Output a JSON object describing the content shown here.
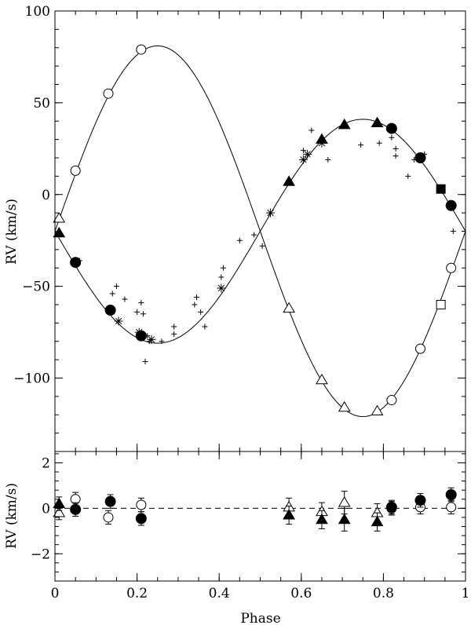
{
  "chart_data": [
    {
      "type": "scatter",
      "panel": "top",
      "ylabel": "RV (km/s)",
      "xlim": [
        0,
        1
      ],
      "ylim": [
        -140,
        100
      ],
      "x_ticks": [
        0,
        0.2,
        0.4,
        0.6,
        0.8,
        1
      ],
      "y_ticks": [
        -100,
        -50,
        0,
        50,
        100
      ],
      "y_tick_labels": [
        "−100",
        "−50",
        "0",
        "50",
        "100"
      ],
      "curves": [
        {
          "gamma": -20,
          "K": 101,
          "phase_max": 0.25
        },
        {
          "gamma": -20,
          "K": 61,
          "phase_max": 0.75
        }
      ],
      "series": [
        {
          "marker": "open-circle",
          "points": [
            [
              0.05,
              13
            ],
            [
              0.13,
              55
            ],
            [
              0.21,
              79
            ],
            [
              0.82,
              -112
            ],
            [
              0.89,
              -84
            ],
            [
              0.965,
              -40
            ]
          ]
        },
        {
          "marker": "open-triangle",
          "points": [
            [
              0.01,
              -13
            ],
            [
              0.57,
              -62
            ],
            [
              0.65,
              -101
            ],
            [
              0.705,
              -116
            ],
            [
              0.785,
              -118
            ]
          ]
        },
        {
          "marker": "open-square",
          "points": [
            [
              0.94,
              -60
            ]
          ]
        },
        {
          "marker": "filled-circle",
          "points": [
            [
              0.05,
              -37
            ],
            [
              0.135,
              -63
            ],
            [
              0.21,
              -77
            ],
            [
              0.82,
              36
            ],
            [
              0.89,
              20
            ],
            [
              0.965,
              -6
            ]
          ]
        },
        {
          "marker": "filled-triangle",
          "points": [
            [
              0.01,
              -21
            ],
            [
              0.57,
              7
            ],
            [
              0.65,
              30
            ],
            [
              0.705,
              38
            ],
            [
              0.785,
              39
            ]
          ]
        },
        {
          "marker": "filled-square",
          "points": [
            [
              0.94,
              3
            ]
          ]
        },
        {
          "marker": "asterisk",
          "points": [
            [
              0.155,
              -69
            ],
            [
              0.205,
              -75
            ],
            [
              0.235,
              -79
            ],
            [
              0.405,
              -51
            ],
            [
              0.525,
              -10
            ],
            [
              0.605,
              19
            ],
            [
              0.615,
              22
            ],
            [
              0.65,
              28
            ]
          ]
        },
        {
          "marker": "plus",
          "points": [
            [
              0.06,
              -36
            ],
            [
              0.14,
              -54
            ],
            [
              0.15,
              -50
            ],
            [
              0.17,
              -57
            ],
            [
              0.2,
              -64
            ],
            [
              0.21,
              -59
            ],
            [
              0.215,
              -65
            ],
            [
              0.225,
              -77
            ],
            [
              0.23,
              -80
            ],
            [
              0.26,
              -80
            ],
            [
              0.22,
              -91
            ],
            [
              0.29,
              -72
            ],
            [
              0.29,
              -76
            ],
            [
              0.34,
              -60
            ],
            [
              0.345,
              -56
            ],
            [
              0.355,
              -64
            ],
            [
              0.365,
              -72
            ],
            [
              0.405,
              -45
            ],
            [
              0.41,
              -40
            ],
            [
              0.45,
              -25
            ],
            [
              0.485,
              -22
            ],
            [
              0.505,
              -28
            ],
            [
              0.565,
              6
            ],
            [
              0.605,
              24
            ],
            [
              0.625,
              35
            ],
            [
              0.665,
              19
            ],
            [
              0.745,
              27
            ],
            [
              0.79,
              28
            ],
            [
              0.82,
              31
            ],
            [
              0.83,
              25
            ],
            [
              0.83,
              21
            ],
            [
              0.86,
              10
            ],
            [
              0.875,
              19
            ],
            [
              0.9,
              22
            ],
            [
              0.97,
              -20
            ]
          ]
        }
      ]
    },
    {
      "type": "scatter",
      "panel": "bottom",
      "xlabel": "Phase",
      "ylabel": "RV (km/s)",
      "xlim": [
        0,
        1
      ],
      "ylim": [
        -3.2,
        2.5
      ],
      "x_ticks": [
        0,
        0.2,
        0.4,
        0.6,
        0.8,
        1
      ],
      "x_tick_labels": [
        "0",
        "0.2",
        "0.4",
        "0.6",
        "0.8",
        "1"
      ],
      "y_ticks": [
        -2,
        0,
        2
      ],
      "y_tick_labels": [
        "−2",
        "0",
        "2"
      ],
      "zero_line": 0,
      "series": [
        {
          "marker": "open-circle",
          "points": [
            [
              0.05,
              0.4,
              0.3
            ],
            [
              0.13,
              -0.4,
              0.3
            ],
            [
              0.21,
              0.15,
              0.3
            ],
            [
              0.82,
              0,
              0.3
            ],
            [
              0.89,
              0.05,
              0.3
            ],
            [
              0.965,
              0.05,
              0.3
            ]
          ]
        },
        {
          "marker": "open-triangle",
          "points": [
            [
              0.01,
              -0.2,
              0.3
            ],
            [
              0.57,
              0.05,
              0.4
            ],
            [
              0.65,
              -0.15,
              0.4
            ],
            [
              0.705,
              0.25,
              0.5
            ],
            [
              0.785,
              -0.2,
              0.4
            ]
          ]
        },
        {
          "marker": "filled-circle",
          "points": [
            [
              0.05,
              -0.05,
              0.3
            ],
            [
              0.135,
              0.3,
              0.3
            ],
            [
              0.21,
              -0.45,
              0.3
            ],
            [
              0.82,
              0.05,
              0.3
            ],
            [
              0.89,
              0.35,
              0.3
            ],
            [
              0.965,
              0.6,
              0.3
            ]
          ]
        },
        {
          "marker": "filled-triangle",
          "points": [
            [
              0.01,
              0.2,
              0.3
            ],
            [
              0.57,
              -0.3,
              0.4
            ],
            [
              0.65,
              -0.5,
              0.4
            ],
            [
              0.705,
              -0.5,
              0.5
            ],
            [
              0.785,
              -0.6,
              0.4
            ]
          ]
        }
      ]
    }
  ]
}
